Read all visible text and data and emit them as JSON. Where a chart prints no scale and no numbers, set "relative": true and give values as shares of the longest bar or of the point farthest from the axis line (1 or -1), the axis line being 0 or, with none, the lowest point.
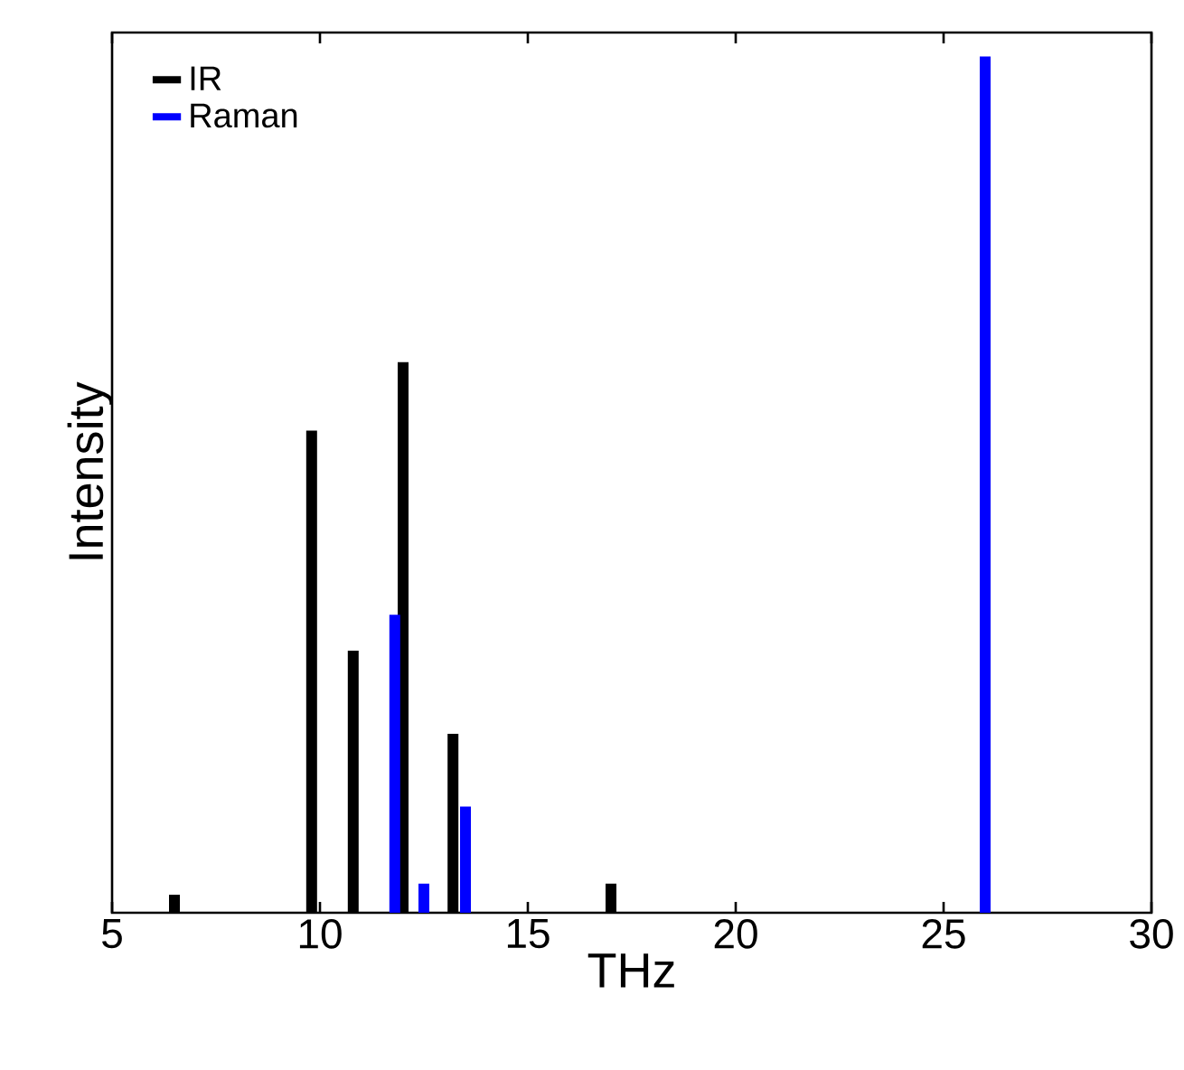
{
  "chart_data": {
    "type": "bar",
    "xlabel": "THz",
    "ylabel": "Intensity",
    "relative": true,
    "xlim": [
      5,
      30
    ],
    "xticks": [
      5,
      10,
      15,
      20,
      25,
      30
    ],
    "legend": "top left",
    "series": [
      {
        "name": "IR",
        "color": "#000000",
        "x": [
          6.5,
          9.8,
          10.8,
          12.0,
          13.2,
          17.0
        ],
        "values": [
          0.021,
          0.563,
          0.306,
          0.643,
          0.209,
          0.034
        ]
      },
      {
        "name": "Raman",
        "color": "#0000ff",
        "x": [
          11.8,
          12.5,
          13.5,
          26.0
        ],
        "values": [
          0.348,
          0.034,
          0.124,
          1
        ]
      }
    ]
  }
}
